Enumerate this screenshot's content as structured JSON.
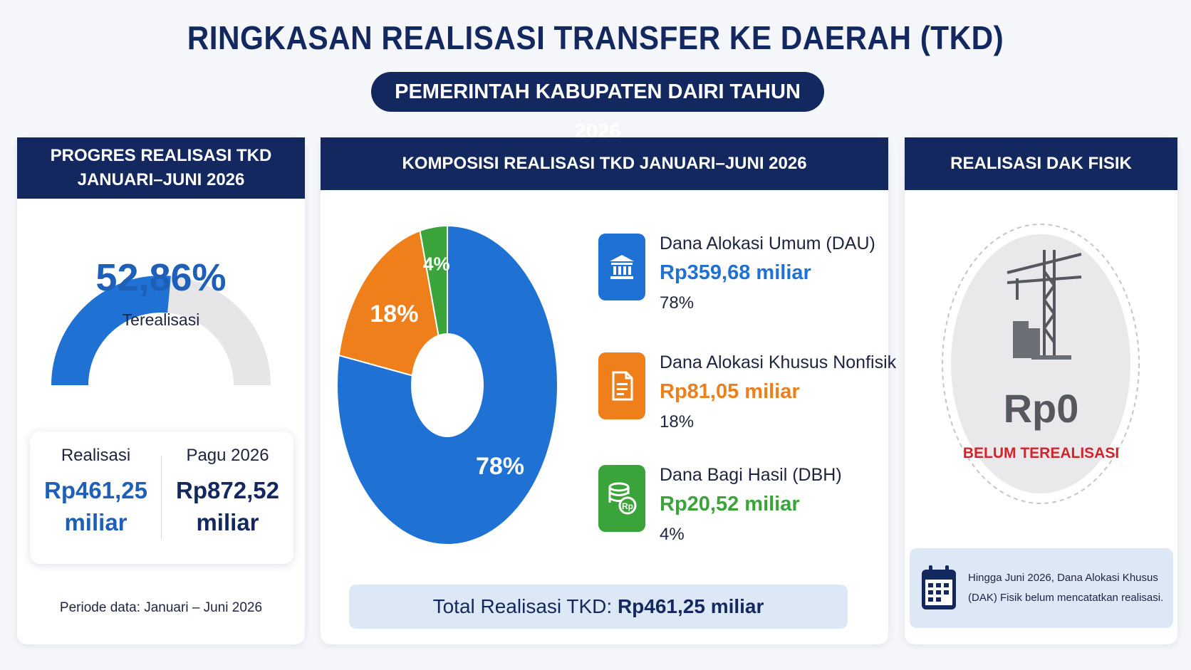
{
  "header": {
    "title": "RINGKASAN REALISASI TRANSFER KE DAERAH (TKD)",
    "subtitle": "PEMERINTAH KABUPATEN DAIRI TAHUN 2026"
  },
  "progress_panel": {
    "heading_line1": "PROGRES REALISASI TKD",
    "heading_line2": "JANUARI–JUNI 2026",
    "percent_label": "52,86%",
    "percent_value": 52.86,
    "status_label": "Terealisasi",
    "realisasi_label": "Realisasi",
    "realisasi_value": "Rp461,25",
    "realisasi_unit": "miliar",
    "pagu_label": "Pagu 2026",
    "pagu_value": "Rp872,52",
    "pagu_unit": "miliar",
    "period": "Periode data: Januari – Juni 2026"
  },
  "composition_panel": {
    "heading": "KOMPOSISI REALISASI TKD JANUARI–JUNI 2026",
    "items": [
      {
        "name": "Dana Alokasi Umum (DAU)",
        "amount": "Rp359,68 miliar",
        "percent": "78%",
        "icon": "bank-icon",
        "color": "#1f72d3"
      },
      {
        "name": "Dana Alokasi Khusus Nonfisik",
        "amount": "Rp81,05 miliar",
        "percent": "18%",
        "icon": "document-icon",
        "color": "#ef7f1a"
      },
      {
        "name": "Dana Bagi Hasil (DBH)",
        "amount": "Rp20,52 miliar",
        "percent": "4%",
        "icon": "coins-icon",
        "color": "#3aa33a"
      }
    ],
    "total_label": "Total Realisasi TKD:",
    "total_value": "Rp461,25 miliar"
  },
  "chart_data": [
    {
      "type": "pie",
      "categories": [
        "DAU",
        "DAK Nonfisik",
        "DBH"
      ],
      "values": [
        78,
        18,
        4
      ],
      "data_labels": [
        "78%",
        "18%",
        "4%"
      ],
      "colors": [
        "#1f72d3",
        "#ef7f1a",
        "#3aa33a"
      ]
    }
  ],
  "dak_panel": {
    "heading": "REALISASI DAK FISIK",
    "value": "Rp0",
    "status": "BELUM TEREALISASI",
    "note": "Hingga Juni 2026, Dana Alokasi Khusus (DAK) Fisik belum mencatatkan realisasi.",
    "icon": "construction-crane-icon"
  },
  "colors": {
    "navy": "#13285f",
    "blue": "#1f72d3",
    "orange": "#ef7f1a",
    "green": "#3aa33a",
    "red": "#d4232a"
  }
}
